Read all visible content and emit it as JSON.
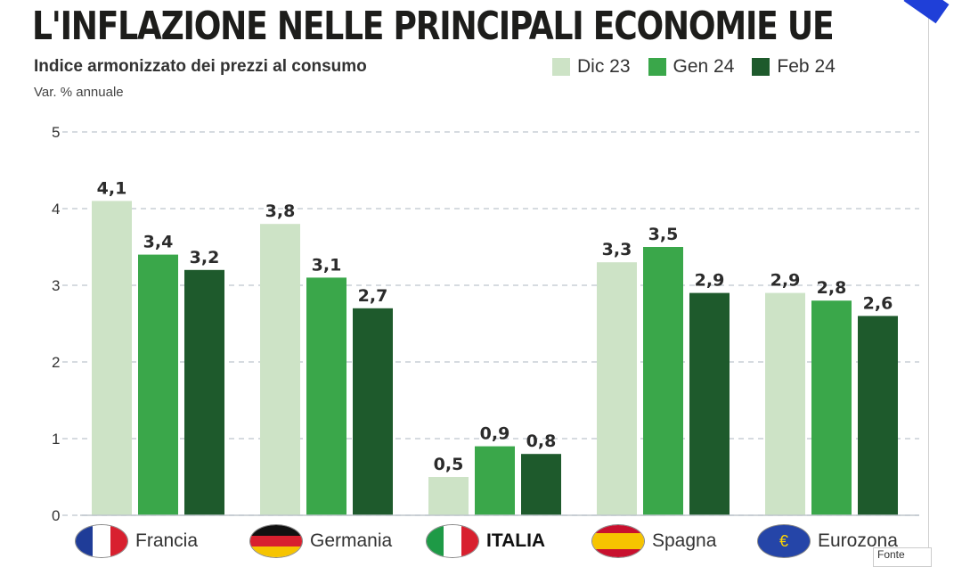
{
  "header": {
    "title": "L'INFLAZIONE NELLE PRINCIPALI ECONOMIE UE",
    "subtitle": "Indice armonizzato dei prezzi al consumo",
    "unit": "Var. % annuale"
  },
  "colors": {
    "dic23": "#cde3c6",
    "gen24": "#3aa74a",
    "feb24": "#1e5a2c",
    "grid": "#c9cfd6",
    "text": "#333333"
  },
  "footer_badge": "Fonte",
  "countries": [
    {
      "label": "Francia",
      "flag_icon": "france-flag-icon"
    },
    {
      "label": "Germania",
      "flag_icon": "germany-flag-icon"
    },
    {
      "label": "ITALIA",
      "flag_icon": "italy-flag-icon"
    },
    {
      "label": "Spagna",
      "flag_icon": "spain-flag-icon"
    },
    {
      "label": "Eurozona",
      "flag_icon": "eu-flag-icon"
    }
  ],
  "chart_data": {
    "type": "bar",
    "title": "L'INFLAZIONE NELLE PRINCIPALI ECONOMIE UE",
    "subtitle": "Indice armonizzato dei prezzi al consumo",
    "ylabel": "Var. % annuale",
    "categories": [
      "Francia",
      "Germania",
      "ITALIA",
      "Spagna",
      "Eurozona"
    ],
    "series": [
      {
        "name": "Dic 23",
        "values": [
          4.1,
          3.8,
          0.5,
          3.3,
          2.9
        ],
        "labels": [
          "4,1",
          "3,8",
          "0,5",
          "3,3",
          "2,9"
        ]
      },
      {
        "name": "Gen 24",
        "values": [
          3.4,
          3.1,
          0.9,
          3.5,
          2.8
        ],
        "labels": [
          "3,4",
          "3,1",
          "0,9",
          "3,5",
          "2,8"
        ]
      },
      {
        "name": "Feb 24",
        "values": [
          3.2,
          2.7,
          0.8,
          2.9,
          2.6
        ],
        "labels": [
          "3,2",
          "2,7",
          "0,8",
          "2,9",
          "2,6"
        ]
      }
    ],
    "ylim": [
      0,
      5
    ],
    "yticks": [
      "0",
      "1",
      "2",
      "3",
      "4",
      "5"
    ],
    "grid": true,
    "legend": "top-right"
  }
}
